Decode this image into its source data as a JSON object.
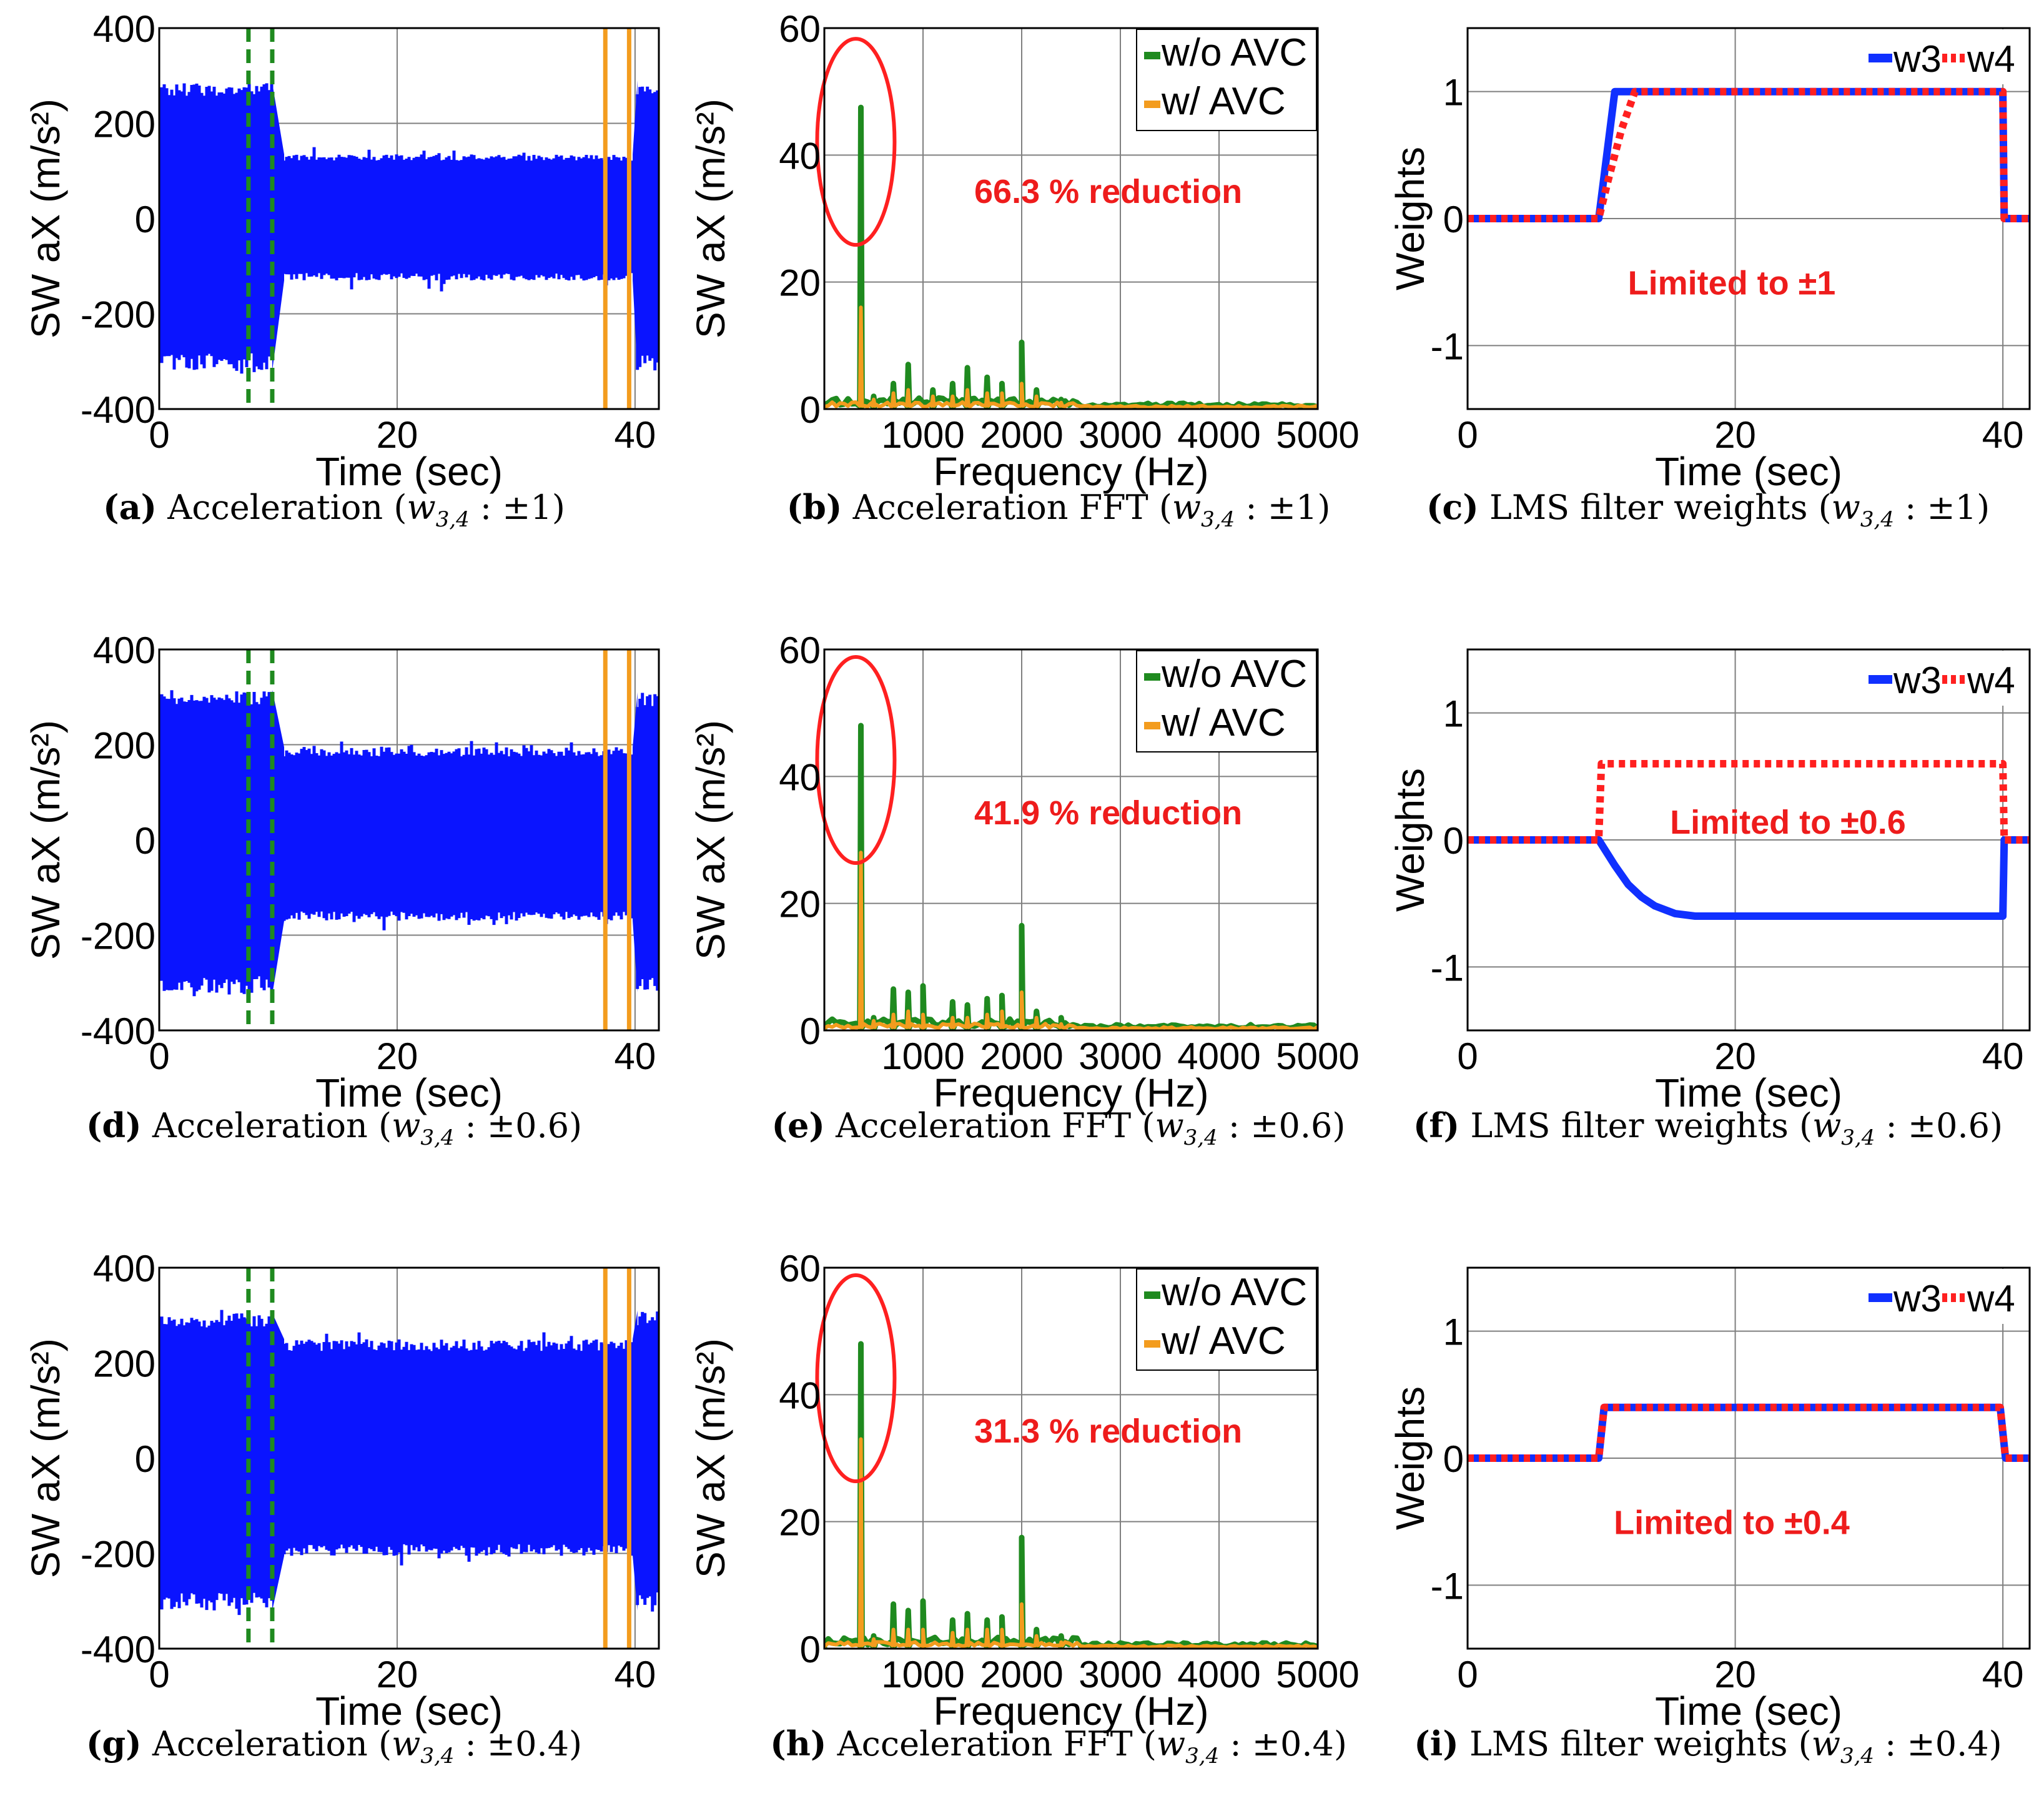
{
  "chart_data": [
    {
      "id": "a",
      "type": "line",
      "kind": "time",
      "title": "",
      "xlabel": "Time (sec)",
      "ylabel": "SW aX (m/s²)",
      "xlim": [
        0,
        42
      ],
      "ylim": [
        -400,
        400
      ],
      "xticks": [
        0,
        20,
        40
      ],
      "yticks": [
        -400,
        -200,
        0,
        200,
        400
      ],
      "envelope": [
        {
          "from": 0,
          "to": 9.5,
          "upper": 285,
          "lower": -320
        },
        {
          "from": 10.5,
          "to": 39.8,
          "upper": 135,
          "lower": -130
        },
        {
          "from": 40.2,
          "to": 42,
          "upper": 290,
          "lower": -320
        }
      ],
      "markers": [
        {
          "x": 7.5,
          "style": "dashed-green"
        },
        {
          "x": 9.5,
          "style": "dashed-green"
        },
        {
          "x": 37.5,
          "style": "solid-orange"
        },
        {
          "x": 39.5,
          "style": "solid-orange"
        }
      ],
      "caption": {
        "letter": "(a)",
        "text": "Acceleration",
        "limit": "±1"
      }
    },
    {
      "id": "b",
      "type": "line",
      "kind": "fft",
      "xlabel": "Frequency (Hz)",
      "ylabel": "SW aX (m/s²)",
      "xlim": [
        0,
        5000
      ],
      "ylim": [
        0,
        60
      ],
      "xticks": [
        1000,
        2000,
        3000,
        4000,
        5000
      ],
      "yticks": [
        0,
        20,
        40,
        60
      ],
      "series": [
        {
          "name": "w/o AVC",
          "color": "#1f8a1f",
          "peaks": [
            [
              370,
              47.5
            ],
            [
              500,
              2
            ],
            [
              700,
              4
            ],
            [
              850,
              7
            ],
            [
              1100,
              3
            ],
            [
              1300,
              4
            ],
            [
              1450,
              6.5
            ],
            [
              1650,
              5
            ],
            [
              1800,
              4
            ],
            [
              2000,
              10.5
            ],
            [
              2150,
              3
            ],
            [
              2400,
              1.5
            ]
          ]
        },
        {
          "name": "w/ AVC",
          "color": "#f39c1e",
          "peaks": [
            [
              370,
              16
            ],
            [
              500,
              1.5
            ],
            [
              700,
              2.5
            ],
            [
              850,
              3
            ],
            [
              1100,
              2
            ],
            [
              1300,
              2
            ],
            [
              1450,
              3
            ],
            [
              1650,
              2.5
            ],
            [
              1800,
              2.5
            ],
            [
              2000,
              4
            ],
            [
              2150,
              2
            ],
            [
              2400,
              1
            ]
          ]
        }
      ],
      "legend": [
        "w/o AVC",
        "w/ AVC"
      ],
      "annotation": "66.3 % reduction",
      "caption": {
        "letter": "(b)",
        "text": "Acceleration FFT",
        "limit": "±1"
      }
    },
    {
      "id": "c",
      "type": "line",
      "kind": "weights",
      "xlabel": "Time (sec)",
      "ylabel": "Weights",
      "xlim": [
        0,
        42
      ],
      "ylim": [
        -1.5,
        1.5
      ],
      "xticks": [
        0,
        20,
        40
      ],
      "yticks": [
        -1,
        0,
        1
      ],
      "series": [
        {
          "name": "w3",
          "color": "#1030ff",
          "style": "solid",
          "points": [
            [
              0,
              0
            ],
            [
              9.8,
              0
            ],
            [
              11,
              1
            ],
            [
              40,
              1
            ],
            [
              40.1,
              0
            ],
            [
              42,
              0
            ]
          ]
        },
        {
          "name": "w4",
          "color": "#ff2020",
          "style": "dotted",
          "points": [
            [
              0,
              0
            ],
            [
              9.8,
              0
            ],
            [
              10.5,
              0.3
            ],
            [
              11.5,
              0.7
            ],
            [
              12.5,
              1
            ],
            [
              40,
              1
            ],
            [
              40.1,
              0
            ],
            [
              42,
              0
            ]
          ]
        }
      ],
      "legend": [
        "w3",
        "w4"
      ],
      "annotation": "Limited to ±1",
      "caption": {
        "letter": "(c)",
        "text": "LMS filter weights",
        "limit": "±1"
      }
    },
    {
      "id": "d",
      "type": "line",
      "kind": "time",
      "xlabel": "Time (sec)",
      "ylabel": "SW aX (m/s²)",
      "xlim": [
        0,
        42
      ],
      "ylim": [
        -400,
        400
      ],
      "xticks": [
        0,
        20,
        40
      ],
      "yticks": [
        -400,
        -200,
        0,
        200,
        400
      ],
      "envelope": [
        {
          "from": 0,
          "to": 9.5,
          "upper": 315,
          "lower": -325
        },
        {
          "from": 10.5,
          "to": 39.8,
          "upper": 195,
          "lower": -170
        },
        {
          "from": 40.2,
          "to": 42,
          "upper": 310,
          "lower": -320
        }
      ],
      "markers": [
        {
          "x": 7.5,
          "style": "dashed-green"
        },
        {
          "x": 9.5,
          "style": "dashed-green"
        },
        {
          "x": 37.5,
          "style": "solid-orange"
        },
        {
          "x": 39.5,
          "style": "solid-orange"
        }
      ],
      "caption": {
        "letter": "(d)",
        "text": "Acceleration",
        "limit": "±0.6"
      }
    },
    {
      "id": "e",
      "type": "line",
      "kind": "fft",
      "xlabel": "Frequency (Hz)",
      "ylabel": "SW aX (m/s²)",
      "xlim": [
        0,
        5000
      ],
      "ylim": [
        0,
        60
      ],
      "xticks": [
        1000,
        2000,
        3000,
        4000,
        5000
      ],
      "yticks": [
        0,
        20,
        40,
        60
      ],
      "series": [
        {
          "name": "w/o AVC",
          "color": "#1f8a1f",
          "peaks": [
            [
              370,
              48
            ],
            [
              500,
              2
            ],
            [
              700,
              6.5
            ],
            [
              850,
              6
            ],
            [
              1000,
              7
            ],
            [
              1300,
              4.5
            ],
            [
              1450,
              4
            ],
            [
              1650,
              5
            ],
            [
              1800,
              5.5
            ],
            [
              2000,
              16.5
            ],
            [
              2150,
              3
            ],
            [
              2400,
              2
            ]
          ]
        },
        {
          "name": "w/ AVC",
          "color": "#f39c1e",
          "peaks": [
            [
              370,
              28
            ],
            [
              500,
              1.5
            ],
            [
              700,
              2.5
            ],
            [
              850,
              3
            ],
            [
              1000,
              2.5
            ],
            [
              1300,
              2
            ],
            [
              1450,
              2
            ],
            [
              1650,
              2.5
            ],
            [
              1800,
              3
            ],
            [
              2000,
              6
            ],
            [
              2150,
              2
            ],
            [
              2400,
              1
            ]
          ]
        }
      ],
      "legend": [
        "w/o AVC",
        "w/ AVC"
      ],
      "annotation": "41.9 % reduction",
      "caption": {
        "letter": "(e)",
        "text": "Acceleration FFT",
        "limit": "±0.6"
      }
    },
    {
      "id": "f",
      "type": "line",
      "kind": "weights",
      "xlabel": "Time (sec)",
      "ylabel": "Weights",
      "xlim": [
        0,
        42
      ],
      "ylim": [
        -1.5,
        1.5
      ],
      "xticks": [
        0,
        20,
        40
      ],
      "yticks": [
        -1,
        0,
        1
      ],
      "series": [
        {
          "name": "w3",
          "color": "#1030ff",
          "style": "solid",
          "points": [
            [
              0,
              0
            ],
            [
              9.8,
              0
            ],
            [
              11,
              -0.2
            ],
            [
              12,
              -0.35
            ],
            [
              13,
              -0.45
            ],
            [
              14,
              -0.52
            ],
            [
              15.5,
              -0.58
            ],
            [
              17,
              -0.6
            ],
            [
              40,
              -0.6
            ],
            [
              40.1,
              0
            ],
            [
              42,
              0
            ]
          ]
        },
        {
          "name": "w4",
          "color": "#ff2020",
          "style": "dotted",
          "points": [
            [
              0,
              0
            ],
            [
              9.8,
              0
            ],
            [
              10,
              0.6
            ],
            [
              40,
              0.6
            ],
            [
              40.1,
              0
            ],
            [
              42,
              0
            ]
          ]
        }
      ],
      "legend": [
        "w3",
        "w4"
      ],
      "annotation": "Limited to ±0.6",
      "caption": {
        "letter": "(f)",
        "text": "LMS filter weights",
        "limit": "±0.6"
      }
    },
    {
      "id": "g",
      "type": "line",
      "kind": "time",
      "xlabel": "Time (sec)",
      "ylabel": "SW aX (m/s²)",
      "xlim": [
        0,
        42
      ],
      "ylim": [
        -400,
        400
      ],
      "xticks": [
        0,
        20,
        40
      ],
      "yticks": [
        -400,
        -200,
        0,
        200,
        400
      ],
      "envelope": [
        {
          "from": 0,
          "to": 9.5,
          "upper": 305,
          "lower": -320
        },
        {
          "from": 10.5,
          "to": 39.8,
          "upper": 250,
          "lower": -205
        },
        {
          "from": 40.2,
          "to": 42,
          "upper": 310,
          "lower": -320
        }
      ],
      "markers": [
        {
          "x": 7.5,
          "style": "dashed-green"
        },
        {
          "x": 9.5,
          "style": "dashed-green"
        },
        {
          "x": 37.5,
          "style": "solid-orange"
        },
        {
          "x": 39.5,
          "style": "solid-orange"
        }
      ],
      "caption": {
        "letter": "(g)",
        "text": "Acceleration",
        "limit": "±0.4"
      }
    },
    {
      "id": "h",
      "type": "line",
      "kind": "fft",
      "xlabel": "Frequency (Hz)",
      "ylabel": "SW aX (m/s²)",
      "xlim": [
        0,
        5000
      ],
      "ylim": [
        0,
        60
      ],
      "xticks": [
        1000,
        2000,
        3000,
        4000,
        5000
      ],
      "yticks": [
        0,
        20,
        40,
        60
      ],
      "series": [
        {
          "name": "w/o AVC",
          "color": "#1f8a1f",
          "peaks": [
            [
              370,
              48
            ],
            [
              500,
              2
            ],
            [
              700,
              7
            ],
            [
              850,
              6
            ],
            [
              1000,
              7.5
            ],
            [
              1300,
              4.5
            ],
            [
              1450,
              5.5
            ],
            [
              1650,
              4.5
            ],
            [
              1800,
              5
            ],
            [
              2000,
              17.5
            ],
            [
              2150,
              3
            ],
            [
              2400,
              2
            ]
          ]
        },
        {
          "name": "w/ AVC",
          "color": "#f39c1e",
          "peaks": [
            [
              370,
              33
            ],
            [
              500,
              1.5
            ],
            [
              700,
              3
            ],
            [
              850,
              3
            ],
            [
              1000,
              3
            ],
            [
              1300,
              2.5
            ],
            [
              1450,
              3
            ],
            [
              1650,
              3
            ],
            [
              1800,
              3
            ],
            [
              2000,
              7
            ],
            [
              2150,
              2
            ],
            [
              2400,
              1
            ]
          ]
        }
      ],
      "legend": [
        "w/o AVC",
        "w/ AVC"
      ],
      "annotation": "31.3 % reduction",
      "caption": {
        "letter": "(h)",
        "text": "Acceleration FFT",
        "limit": "±0.4"
      }
    },
    {
      "id": "i",
      "type": "line",
      "kind": "weights",
      "xlabel": "Time (sec)",
      "ylabel": "Weights",
      "xlim": [
        0,
        42
      ],
      "ylim": [
        -1.5,
        1.5
      ],
      "xticks": [
        0,
        20,
        40
      ],
      "yticks": [
        -1,
        0,
        1
      ],
      "series": [
        {
          "name": "w3",
          "color": "#1030ff",
          "style": "solid",
          "points": [
            [
              0,
              0
            ],
            [
              9.8,
              0
            ],
            [
              10.2,
              0.4
            ],
            [
              39.8,
              0.4
            ],
            [
              40.2,
              0
            ],
            [
              42,
              0
            ]
          ]
        },
        {
          "name": "w4",
          "color": "#ff2020",
          "style": "dotted",
          "points": [
            [
              0,
              0
            ],
            [
              9.8,
              0
            ],
            [
              10.2,
              0.4
            ],
            [
              39.8,
              0.4
            ],
            [
              40.2,
              0
            ],
            [
              42,
              0
            ]
          ]
        }
      ],
      "legend": [
        "w3",
        "w4"
      ],
      "annotation": "Limited to ±0.4",
      "caption": {
        "letter": "(i)",
        "text": "LMS filter weights",
        "limit": "±0.4"
      }
    }
  ],
  "labels": {
    "caption_var": "w",
    "caption_sub": "3,4",
    "caption_sep": ":"
  },
  "colors": {
    "signal": "#0a14ff",
    "no_avc": "#1f8a1f",
    "avc": "#f39c1e",
    "w3": "#1030ff",
    "w4": "#ff2020",
    "annotation": "#ee1c1c",
    "grid": "#7f7f7f"
  }
}
